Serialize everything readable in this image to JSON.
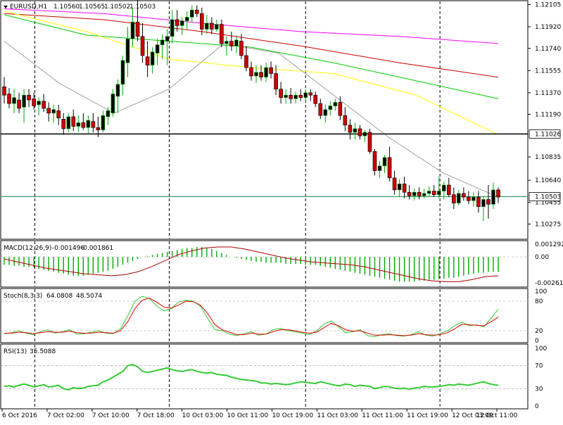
{
  "chart_data": {
    "type": "candlestick",
    "symbol_header": "EURUSD,H1",
    "ohlc_header": [
      "1.10560",
      "1.10565",
      "1.10502",
      "1.10503"
    ],
    "candles": [
      [
        1.1142,
        1.115,
        1.1128,
        1.1135
      ],
      [
        1.1136,
        1.1141,
        1.1124,
        1.1128
      ],
      [
        1.1128,
        1.114,
        1.112,
        1.1133
      ],
      [
        1.1131,
        1.1137,
        1.112,
        1.1124
      ],
      [
        1.1125,
        1.114,
        1.1112,
        1.1135
      ],
      [
        1.1135,
        1.114,
        1.1125,
        1.1131
      ],
      [
        1.1132,
        1.1137,
        1.1123,
        1.1126
      ],
      [
        1.1127,
        1.1133,
        1.1118,
        1.113
      ],
      [
        1.113,
        1.1136,
        1.1121,
        1.1124
      ],
      [
        1.1124,
        1.1129,
        1.1113,
        1.112
      ],
      [
        1.112,
        1.1127,
        1.1112,
        1.1123
      ],
      [
        1.1122,
        1.1127,
        1.111,
        1.1116
      ],
      [
        1.1115,
        1.112,
        1.1102,
        1.1107
      ],
      [
        1.1107,
        1.112,
        1.1104,
        1.1117
      ],
      [
        1.1117,
        1.1123,
        1.1105,
        1.1109
      ],
      [
        1.1109,
        1.1118,
        1.1104,
        1.1112
      ],
      [
        1.1112,
        1.112,
        1.1106,
        1.1108
      ],
      [
        1.1108,
        1.1118,
        1.1103,
        1.1114
      ],
      [
        1.1113,
        1.112,
        1.1104,
        1.1108
      ],
      [
        1.1108,
        1.1117,
        1.11,
        1.1106
      ],
      [
        1.1106,
        1.1122,
        1.1104,
        1.1118
      ],
      [
        1.1117,
        1.1125,
        1.111,
        1.1122
      ],
      [
        1.112,
        1.114,
        1.1117,
        1.1136
      ],
      [
        1.1134,
        1.1148,
        1.112,
        1.1144
      ],
      [
        1.1144,
        1.1168,
        1.1135,
        1.1164
      ],
      [
        1.1162,
        1.1192,
        1.115,
        1.1182
      ],
      [
        1.1182,
        1.1208,
        1.1175,
        1.1196
      ],
      [
        1.1196,
        1.1215,
        1.118,
        1.1184
      ],
      [
        1.1184,
        1.1195,
        1.1162,
        1.1168
      ],
      [
        1.1167,
        1.118,
        1.115,
        1.116
      ],
      [
        1.116,
        1.1175,
        1.1153,
        1.1171
      ],
      [
        1.117,
        1.1182,
        1.116,
        1.1177
      ],
      [
        1.1177,
        1.1186,
        1.1165,
        1.1181
      ],
      [
        1.118,
        1.119,
        1.116,
        1.1184
      ],
      [
        1.1184,
        1.1206,
        1.1178,
        1.1198
      ],
      [
        1.1198,
        1.1206,
        1.1188,
        1.1193
      ],
      [
        1.1193,
        1.12,
        1.1185,
        1.1197
      ],
      [
        1.1197,
        1.1205,
        1.119,
        1.12
      ],
      [
        1.12,
        1.121,
        1.1196,
        1.1206
      ],
      [
        1.1206,
        1.121,
        1.12,
        1.1203
      ],
      [
        1.1203,
        1.1208,
        1.1185,
        1.119
      ],
      [
        1.119,
        1.1202,
        1.1186,
        1.1195
      ],
      [
        1.1195,
        1.12,
        1.1186,
        1.119
      ],
      [
        1.119,
        1.1198,
        1.1188,
        1.1194
      ],
      [
        1.1194,
        1.1198,
        1.1175,
        1.1178
      ],
      [
        1.1178,
        1.1184,
        1.1168,
        1.118
      ],
      [
        1.118,
        1.1188,
        1.1172,
        1.1176
      ],
      [
        1.1176,
        1.1185,
        1.117,
        1.1181
      ],
      [
        1.118,
        1.1186,
        1.1165,
        1.1168
      ],
      [
        1.1168,
        1.1176,
        1.1155,
        1.1158
      ],
      [
        1.1158,
        1.1163,
        1.1147,
        1.1151
      ],
      [
        1.1151,
        1.116,
        1.1145,
        1.1154
      ],
      [
        1.1154,
        1.116,
        1.1147,
        1.115
      ],
      [
        1.115,
        1.1162,
        1.1146,
        1.1158
      ],
      [
        1.1158,
        1.1163,
        1.1149,
        1.1153
      ],
      [
        1.1153,
        1.116,
        1.1135,
        1.114
      ],
      [
        1.114,
        1.1146,
        1.1128,
        1.1133
      ],
      [
        1.1133,
        1.114,
        1.1128,
        1.1135
      ],
      [
        1.1135,
        1.1141,
        1.1128,
        1.1132
      ],
      [
        1.1132,
        1.1138,
        1.1128,
        1.1135
      ],
      [
        1.1135,
        1.114,
        1.113,
        1.1133
      ],
      [
        1.1133,
        1.114,
        1.113,
        1.1137
      ],
      [
        1.1137,
        1.114,
        1.113,
        1.1135
      ],
      [
        1.1135,
        1.1138,
        1.1125,
        1.1128
      ],
      [
        1.1128,
        1.1132,
        1.1115,
        1.1118
      ],
      [
        1.1118,
        1.1127,
        1.1112,
        1.1123
      ],
      [
        1.1123,
        1.113,
        1.1118,
        1.1126
      ],
      [
        1.1126,
        1.1132,
        1.1122,
        1.1129
      ],
      [
        1.1129,
        1.1134,
        1.1114,
        1.1118
      ],
      [
        1.1118,
        1.1125,
        1.1105,
        1.111
      ],
      [
        1.111,
        1.1115,
        1.1098,
        1.1104
      ],
      [
        1.1104,
        1.1112,
        1.1098,
        1.1107
      ],
      [
        1.1107,
        1.111,
        1.1098,
        1.1101
      ],
      [
        1.1101,
        1.1106,
        1.1096,
        1.1104
      ],
      [
        1.1104,
        1.1107,
        1.1086,
        1.1088
      ],
      [
        1.1088,
        1.109,
        1.1068,
        1.1072
      ],
      [
        1.1072,
        1.108,
        1.1066,
        1.1076
      ],
      [
        1.1076,
        1.1085,
        1.107,
        1.1083
      ],
      [
        1.1083,
        1.1092,
        1.1063,
        1.1066
      ],
      [
        1.1066,
        1.1072,
        1.1052,
        1.1056
      ],
      [
        1.1056,
        1.1065,
        1.105,
        1.1061
      ],
      [
        1.1061,
        1.1067,
        1.1049,
        1.1054
      ],
      [
        1.1054,
        1.106,
        1.1048,
        1.1051
      ],
      [
        1.1051,
        1.1057,
        1.1047,
        1.1054
      ],
      [
        1.1054,
        1.1058,
        1.1048,
        1.1051
      ],
      [
        1.1051,
        1.1057,
        1.1049,
        1.1053
      ],
      [
        1.1053,
        1.1059,
        1.105,
        1.1055
      ],
      [
        1.1055,
        1.106,
        1.105,
        1.1052
      ],
      [
        1.1052,
        1.1067,
        1.1049,
        1.1055
      ],
      [
        1.1055,
        1.1063,
        1.1048,
        1.106
      ],
      [
        1.106,
        1.1066,
        1.105,
        1.1052
      ],
      [
        1.1052,
        1.1058,
        1.104,
        1.1045
      ],
      [
        1.1045,
        1.1056,
        1.1043,
        1.1053
      ],
      [
        1.1053,
        1.1058,
        1.1047,
        1.105
      ],
      [
        1.105,
        1.1055,
        1.1044,
        1.1047
      ],
      [
        1.1047,
        1.1054,
        1.1042,
        1.105
      ],
      [
        1.105,
        1.1055,
        1.1037,
        1.1042
      ],
      [
        1.1042,
        1.105,
        1.103,
        1.1048
      ],
      [
        1.1048,
        1.106,
        1.1032,
        1.1044
      ],
      [
        1.1044,
        1.1062,
        1.104,
        1.1056
      ],
      [
        1.1056,
        1.1058,
        1.1045,
        1.105
      ]
    ],
    "price_axis": {
      "ylim": [
        1.1016,
        1.1212
      ],
      "ticks": [
        "1.12105",
        "1.11920",
        "1.11740",
        "1.11555",
        "1.11370",
        "1.11190",
        "1.10835",
        "1.10640",
        "1.10455",
        "1.10275"
      ]
    },
    "horizontal_lines": [
      {
        "value": 1.11026,
        "label": "1.11026",
        "color": "#000000"
      },
      {
        "value": 1.10503,
        "label": "1.10503",
        "color": "#2e8b57"
      }
    ],
    "moving_averages": [
      {
        "color": "#ff00ff",
        "values": [
          1.1207,
          1.1203,
          1.1195,
          1.1188,
          1.1184,
          1.1178
        ]
      },
      {
        "color": "#cc0000",
        "values": [
          1.1203,
          1.1198,
          1.1188,
          1.1176,
          1.1162,
          1.115
        ]
      },
      {
        "color": "#00cc00",
        "values": [
          1.1202,
          1.1185,
          1.118,
          1.1175,
          1.1162,
          1.1147,
          1.1132
        ]
      },
      {
        "color": "#ffff00",
        "values": [
          1.1205,
          1.1188,
          1.1165,
          1.1158,
          1.1153,
          1.1135,
          1.1102
        ]
      },
      {
        "color": "#a0a0a0",
        "values": [
          1.118,
          1.1145,
          1.112,
          1.114,
          1.1178,
          1.117,
          1.1135,
          1.11,
          1.107,
          1.105
        ]
      }
    ],
    "macd": {
      "label": "MACD(12,26,9)",
      "values": [
        "-0.001496",
        "-0.001861"
      ],
      "ylim": [
        -0.0029,
        0.0015
      ],
      "ticks": [
        "0.001292",
        "0.00",
        "-0.00261"
      ],
      "histogram": [
        -0.0008,
        -0.0008,
        -0.0009,
        -0.0009,
        -0.001,
        -0.001,
        -0.0011,
        -0.0012,
        -0.0013,
        -0.0014,
        -0.0015,
        -0.0016,
        -0.0017,
        -0.0018,
        -0.0019,
        -0.0019,
        -0.0019,
        -0.0018,
        -0.0017,
        -0.0016,
        -0.0015,
        -0.0014,
        -0.0012,
        -0.001,
        -0.0008,
        -0.0006,
        -0.0004,
        -0.0002,
        0.0,
        0.0001,
        0.0002,
        0.0003,
        0.0004,
        0.0005,
        0.0006,
        0.0007,
        0.0008,
        0.0009,
        0.0009,
        0.001,
        0.001,
        0.0009,
        0.0008,
        0.0006,
        0.0004,
        0.0002,
        0.0,
        -0.0001,
        -0.0002,
        -0.0003,
        -0.0004,
        -0.0005,
        -0.0005,
        -0.0006,
        -0.0006,
        -0.0006,
        -0.0006,
        -0.0007,
        -0.0007,
        -0.0007,
        -0.0007,
        -0.0008,
        -0.0008,
        -0.0008,
        -0.0009,
        -0.001,
        -0.0011,
        -0.0012,
        -0.0013,
        -0.0014,
        -0.0015,
        -0.0016,
        -0.0017,
        -0.0018,
        -0.0019,
        -0.002,
        -0.0021,
        -0.0022,
        -0.0023,
        -0.0024,
        -0.0025,
        -0.0025,
        -0.0025,
        -0.0025,
        -0.0024,
        -0.0024,
        -0.0023,
        -0.0023,
        -0.0022,
        -0.0022,
        -0.0021,
        -0.0021,
        -0.002,
        -0.0019,
        -0.0018,
        -0.0017,
        -0.0016,
        -0.0016,
        -0.0015,
        -0.0015,
        -0.0015
      ],
      "signal": [
        -0.0002,
        -0.0005,
        -0.0008,
        -0.0011,
        -0.0013,
        -0.0015,
        -0.0017,
        -0.0018,
        -0.0019,
        -0.0018,
        -0.0015,
        -0.001,
        -0.0004,
        0.0002,
        0.0006,
        0.0009,
        0.001,
        0.001,
        0.0008,
        0.0005,
        0.0002,
        -0.0001,
        -0.0003,
        -0.0005,
        -0.0006,
        -0.0007,
        -0.0008,
        -0.001,
        -0.0013,
        -0.0016,
        -0.0019,
        -0.0022,
        -0.0024,
        -0.0025,
        -0.0025,
        -0.0023,
        -0.002,
        -0.0019
      ]
    },
    "stochastic": {
      "label": "Stoch(8,3,3)",
      "values": [
        "64.0808",
        "48.5074"
      ],
      "ylim": [
        0,
        100
      ],
      "ticks": [
        "100",
        "80",
        "20",
        "0"
      ],
      "levels": [
        80,
        20
      ],
      "main": [
        14,
        16,
        20,
        15,
        12,
        18,
        22,
        15,
        18,
        22,
        13,
        14,
        17,
        20,
        15,
        14,
        24,
        50,
        80,
        90,
        85,
        70,
        60,
        65,
        78,
        82,
        80,
        70,
        45,
        22,
        20,
        13,
        10,
        14,
        18,
        11,
        13,
        22,
        25,
        20,
        18,
        15,
        12,
        20,
        33,
        40,
        28,
        16,
        18,
        22,
        10,
        8,
        12,
        14,
        10,
        9,
        12,
        18,
        11,
        9,
        14,
        20,
        30,
        38,
        30,
        32,
        28,
        45,
        64
      ],
      "signal": [
        15,
        15,
        17,
        16,
        14,
        16,
        18,
        17,
        17,
        19,
        16,
        15,
        15,
        17,
        16,
        15,
        20,
        38,
        65,
        82,
        86,
        78,
        68,
        66,
        72,
        80,
        79,
        72,
        55,
        32,
        22,
        17,
        12,
        12,
        15,
        13,
        13,
        18,
        22,
        22,
        20,
        17,
        15,
        17,
        26,
        35,
        30,
        22,
        19,
        20,
        15,
        11,
        11,
        12,
        11,
        10,
        11,
        14,
        12,
        11,
        12,
        16,
        24,
        33,
        32,
        31,
        30,
        38,
        48
      ]
    },
    "rsi": {
      "label": "RSI(13)",
      "value": "35.5088",
      "ylim": [
        0,
        100
      ],
      "ticks": [
        "100",
        "70",
        "30",
        "0"
      ],
      "levels": [
        70,
        30
      ],
      "values": [
        34,
        35,
        33,
        36,
        38,
        36,
        33,
        35,
        37,
        33,
        34,
        36,
        30,
        28,
        32,
        30,
        31,
        34,
        35,
        36,
        42,
        45,
        50,
        55,
        60,
        70,
        72,
        68,
        60,
        58,
        60,
        62,
        64,
        66,
        63,
        61,
        60,
        62,
        63,
        60,
        58,
        57,
        58,
        55,
        54,
        53,
        50,
        48,
        46,
        45,
        44,
        43,
        40,
        40,
        38,
        39,
        38,
        37,
        38,
        40,
        42,
        41,
        40,
        39,
        42,
        40,
        38,
        36,
        35,
        38,
        37,
        34,
        36,
        35,
        34,
        30,
        32,
        34,
        33,
        31,
        30,
        31,
        29,
        31,
        32,
        34,
        33,
        33,
        34,
        35,
        37,
        36,
        38,
        37,
        36,
        38,
        40,
        42,
        39,
        37,
        36
      ]
    },
    "time_axis": [
      "6 Oct 2016",
      "7 Oct 02:00",
      "7 Oct 10:00",
      "7 Oct 18:00",
      "10 Oct 03:00",
      "10 Oct 11:00",
      "10 Oct 19:00",
      "11 Oct 03:00",
      "11 Oct 11:00",
      "11 Oct 19:00",
      "12 Oct 03:00",
      "12 Oct 11:00"
    ],
    "colors": {
      "bull": "#00aa00",
      "bear": "#cc0000",
      "grid": "#000000",
      "rsi_line": "#33cc33",
      "stoch_main": "#33cc33",
      "stoch_signal": "#dd0000",
      "macd_signal": "#aa0000"
    }
  }
}
